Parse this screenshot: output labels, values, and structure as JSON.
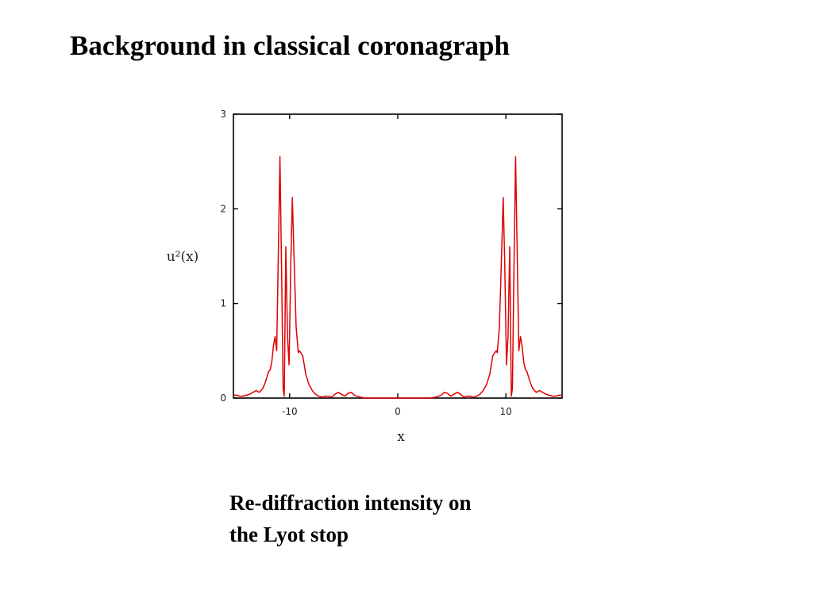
{
  "slide": {
    "title": "Background in classical coronagraph",
    "caption_line1": "Re-diffraction intensity on",
    "caption_line2": "the Lyot stop"
  },
  "chart_data": {
    "type": "line",
    "title": "",
    "xlabel": "x",
    "ylabel": "u²(x)",
    "xlim": [
      -15.2,
      15.2
    ],
    "ylim": [
      0,
      3
    ],
    "xticks": [
      -10,
      0,
      10
    ],
    "xtick_labels": [
      "-10",
      "0",
      "10"
    ],
    "yticks": [
      0,
      1,
      2,
      3
    ],
    "ytick_labels": [
      "0",
      "1",
      "2",
      "3"
    ],
    "grid": false,
    "line_color": "#e00000",
    "series": [
      {
        "name": "",
        "x": [
          0,
          0.5,
          1,
          1.5,
          2,
          2.5,
          3,
          3.5,
          4,
          4.3,
          4.6,
          4.9,
          5.2,
          5.5,
          5.8,
          6.1,
          6.4,
          6.7,
          7,
          7.3,
          7.6,
          7.9,
          8.2,
          8.5,
          8.8,
          9.1,
          9.2,
          9.4,
          9.6,
          9.75,
          9.9,
          10.05,
          10.2,
          10.35,
          10.5,
          10.6,
          10.75,
          10.9,
          11.05,
          11.2,
          11.35,
          11.5,
          11.65,
          11.8,
          11.95,
          12.1,
          12.3,
          12.5,
          12.8,
          13.1,
          13.4,
          13.7,
          14,
          14.3,
          14.6,
          14.9,
          15.2
        ],
        "y": [
          0.0,
          0.0,
          0.0,
          0.0,
          0.0,
          0.0,
          0.0,
          0.01,
          0.03,
          0.06,
          0.05,
          0.02,
          0.04,
          0.06,
          0.04,
          0.01,
          0.02,
          0.02,
          0.01,
          0.02,
          0.04,
          0.08,
          0.14,
          0.25,
          0.45,
          0.5,
          0.48,
          0.75,
          1.5,
          2.12,
          1.4,
          0.35,
          0.65,
          1.6,
          0.02,
          0.1,
          1.4,
          2.55,
          1.5,
          0.5,
          0.65,
          0.55,
          0.38,
          0.3,
          0.28,
          0.22,
          0.15,
          0.1,
          0.06,
          0.08,
          0.06,
          0.04,
          0.03,
          0.02,
          0.02,
          0.03,
          0.03
        ],
        "symmetric": true
      }
    ]
  }
}
